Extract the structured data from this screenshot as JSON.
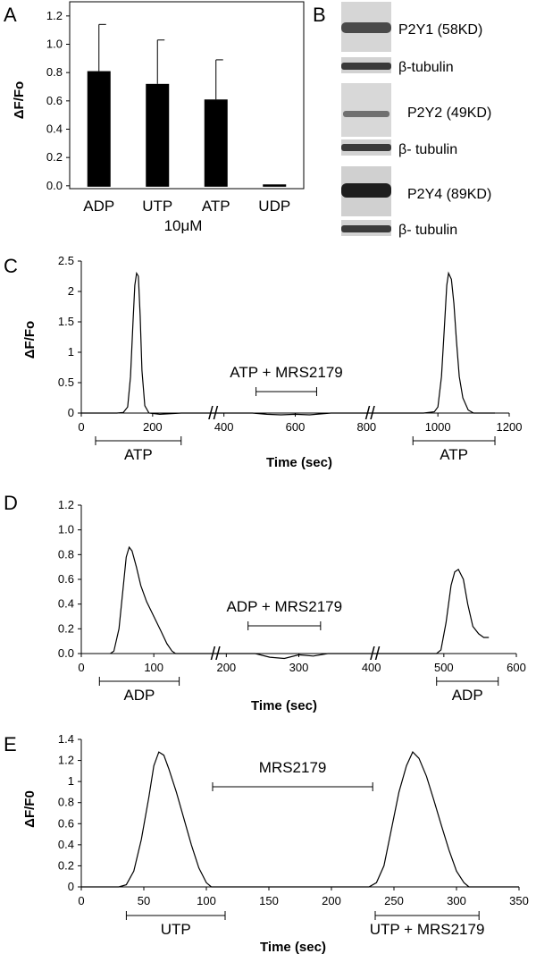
{
  "figure": {
    "panel_letters": [
      "A",
      "B",
      "C",
      "D",
      "E"
    ],
    "break_mark": "//"
  },
  "chart_data": [
    {
      "panel": "A",
      "type": "bar",
      "title": "",
      "categories": [
        "ADP",
        "UTP",
        "ATP",
        "UDP"
      ],
      "values": [
        0.81,
        0.72,
        0.61,
        0.01
      ],
      "errors": [
        0.33,
        0.31,
        0.28,
        0.0
      ],
      "xlabel": "10μM",
      "ylabel": "ΔF/Fo",
      "ylim": [
        0,
        1.3
      ],
      "yticks": [
        "0.0",
        "0.2",
        "0.4",
        "0.6",
        "0.8",
        "1.0",
        "1.2"
      ],
      "bar_color": "#000000"
    },
    {
      "panel": "B",
      "type": "western-blot",
      "bands": [
        {
          "label": "P2Y1 (58KD)",
          "loading_label": "β-tubulin"
        },
        {
          "label": "P2Y2 (49KD)",
          "loading_label": "β- tubulin"
        },
        {
          "label": "P2Y4 (89KD)",
          "loading_label": "β- tubulin"
        }
      ]
    },
    {
      "panel": "C",
      "type": "line",
      "ylabel": "ΔF/Fo",
      "xlabel": "Time (sec)",
      "ylim": [
        0,
        2.5
      ],
      "xlim": [
        0,
        1200
      ],
      "yticks": [
        "0",
        "0.5",
        "1",
        "1.5",
        "2",
        "2.5"
      ],
      "xticks": [
        "0",
        "200",
        "400",
        "600",
        "800",
        "1000",
        "1200"
      ],
      "axis_breaks": [
        370,
        810
      ],
      "series": [
        {
          "name": "trace",
          "x": [
            0,
            100,
            118,
            130,
            138,
            145,
            150,
            155,
            160,
            165,
            170,
            178,
            190,
            220,
            280,
            360,
            480,
            520,
            560,
            600,
            640,
            700,
            780,
            860,
            920,
            960,
            990,
            1000,
            1010,
            1018,
            1025,
            1030,
            1038,
            1045,
            1052,
            1060,
            1070,
            1085,
            1100,
            1140,
            1160
          ],
          "y": [
            0,
            0,
            0.01,
            0.1,
            0.6,
            1.5,
            2.1,
            2.3,
            2.25,
            1.6,
            0.7,
            0.12,
            0.0,
            -0.02,
            0.0,
            0.0,
            0.0,
            -0.02,
            -0.03,
            -0.02,
            -0.03,
            0.0,
            0.0,
            0.0,
            0.0,
            0.0,
            0.02,
            0.1,
            0.6,
            1.4,
            2.1,
            2.3,
            2.2,
            1.8,
            1.2,
            0.6,
            0.25,
            0.05,
            0.0,
            0.0,
            0.0
          ]
        }
      ],
      "annotations": [
        {
          "text": "ATP",
          "range": [
            40,
            280
          ],
          "position": "below-axis"
        },
        {
          "text": "ATP + MRS2179",
          "range": [
            490,
            660
          ],
          "position": "above-trace"
        },
        {
          "text": "ATP",
          "range": [
            930,
            1160
          ],
          "position": "below-axis"
        }
      ]
    },
    {
      "panel": "D",
      "type": "line",
      "ylabel": "",
      "xlabel": "Time (sec)",
      "ylim": [
        0,
        1.2
      ],
      "xlim": [
        0,
        600
      ],
      "yticks": [
        "0.0",
        "0.2",
        "0.4",
        "0.6",
        "0.8",
        "1.0",
        "1.2"
      ],
      "xticks": [
        "0",
        "100",
        "200",
        "300",
        "400",
        "500",
        "600"
      ],
      "axis_breaks": [
        185,
        405
      ],
      "series": [
        {
          "name": "trace",
          "x": [
            40,
            45,
            52,
            58,
            62,
            66,
            70,
            76,
            82,
            90,
            100,
            110,
            118,
            125,
            130,
            140,
            160,
            200,
            240,
            260,
            280,
            300,
            320,
            340,
            400,
            470,
            490,
            496,
            503,
            510,
            515,
            520,
            527,
            533,
            540,
            548,
            555,
            562
          ],
          "y": [
            0,
            0.02,
            0.2,
            0.55,
            0.78,
            0.86,
            0.83,
            0.7,
            0.55,
            0.42,
            0.3,
            0.18,
            0.08,
            0.02,
            0.0,
            0.0,
            0.0,
            0.0,
            0.0,
            -0.03,
            -0.04,
            -0.01,
            -0.02,
            0.0,
            0.0,
            0.0,
            0.0,
            0.03,
            0.25,
            0.55,
            0.66,
            0.68,
            0.6,
            0.4,
            0.22,
            0.16,
            0.13,
            0.13
          ]
        }
      ],
      "annotations": [
        {
          "text": "ADP",
          "range": [
            25,
            135
          ],
          "position": "below-axis"
        },
        {
          "text": "ADP + MRS2179",
          "range": [
            230,
            330
          ],
          "position": "above-trace"
        },
        {
          "text": "ADP",
          "range": [
            490,
            575
          ],
          "position": "below-axis"
        }
      ]
    },
    {
      "panel": "E",
      "type": "line",
      "ylabel": "ΔF/F0",
      "xlabel": "Time (sec)",
      "ylim": [
        0,
        1.4
      ],
      "xlim": [
        0,
        350
      ],
      "yticks": [
        "0",
        "0.2",
        "0.4",
        "0.6",
        "0.8",
        "1",
        "1.2",
        "1.4"
      ],
      "xticks": [
        "0",
        "50",
        "100",
        "150",
        "200",
        "250",
        "300",
        "350"
      ],
      "series": [
        {
          "name": "trace",
          "x": [
            0,
            30,
            36,
            42,
            48,
            54,
            58,
            62,
            66,
            70,
            76,
            82,
            88,
            94,
            100,
            104,
            110,
            150,
            200,
            230,
            236,
            242,
            248,
            254,
            260,
            265,
            270,
            276,
            282,
            288,
            294,
            300,
            306,
            310,
            316,
            330,
            350
          ],
          "y": [
            0,
            0,
            0.02,
            0.15,
            0.45,
            0.85,
            1.15,
            1.28,
            1.25,
            1.12,
            0.9,
            0.65,
            0.4,
            0.18,
            0.04,
            0.0,
            0.0,
            0.0,
            0.0,
            0.0,
            0.04,
            0.2,
            0.55,
            0.9,
            1.15,
            1.28,
            1.22,
            1.05,
            0.82,
            0.58,
            0.35,
            0.15,
            0.04,
            0.0,
            0.0,
            0.0,
            0.0
          ]
        }
      ],
      "annotations": [
        {
          "text": "UTP",
          "range": [
            36,
            115
          ],
          "position": "below-axis"
        },
        {
          "text": "MRS2179",
          "range": [
            105,
            233
          ],
          "position": "above-trace"
        },
        {
          "text": "UTP + MRS2179",
          "range": [
            235,
            318
          ],
          "position": "below-axis"
        }
      ]
    }
  ]
}
